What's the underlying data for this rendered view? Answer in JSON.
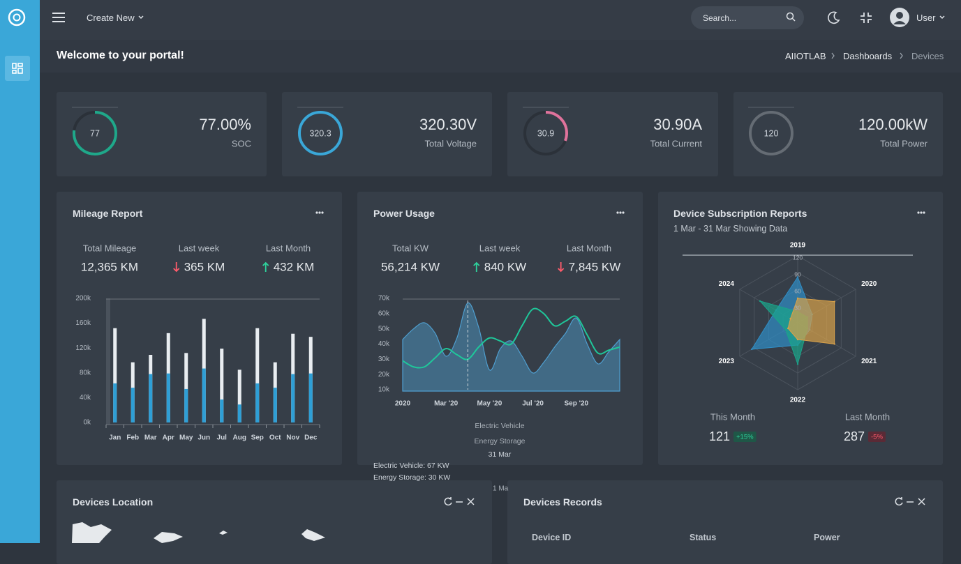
{
  "topbar": {
    "create": "Create New",
    "search": "Search...",
    "user": "User"
  },
  "page": {
    "title": "Welcome to your portal!",
    "breadcrumb": [
      "AIIOTLAB",
      "Dashboards",
      "Devices"
    ]
  },
  "stats": [
    {
      "gauge": 77,
      "value": "77.00%",
      "label": "SOC",
      "color": "#1fa88a"
    },
    {
      "gauge": 320.3,
      "value": "320.30V",
      "label": "Total Voltage",
      "color": "#3aa7d8"
    },
    {
      "gauge": 30.9,
      "value": "30.90A",
      "label": "Total Current",
      "color": "#e0739c"
    },
    {
      "gauge": 120,
      "value": "120.00kW",
      "label": "Total Power",
      "color": "#656c74"
    }
  ],
  "mileage": {
    "title": "Mileage Report",
    "summary": [
      {
        "label": "Total Mileage",
        "value": "12,365 KM"
      },
      {
        "label": "Last week",
        "value": "365 KM",
        "trend": "down"
      },
      {
        "label": "Last Month",
        "value": "432 KM",
        "trend": "up"
      }
    ],
    "chart": {
      "type": "bar",
      "categories": [
        "Jan",
        "Feb",
        "Mar",
        "Apr",
        "May",
        "Jun",
        "Jul",
        "Aug",
        "Sep",
        "Oct",
        "Nov",
        "Dec"
      ],
      "series": [
        {
          "color": "#e9edf1",
          "values": [
            152000,
            97000,
            109000,
            144000,
            112000,
            167000,
            119000,
            85000,
            152000,
            97000,
            143000,
            138000
          ]
        },
        {
          "color": "#2e9fd6",
          "values": [
            63000,
            56000,
            78000,
            79000,
            54000,
            87000,
            37000,
            29000,
            63000,
            56000,
            78000,
            79000
          ]
        }
      ],
      "ylim": [
        0,
        200000
      ],
      "yticks": [
        {
          "value": 0,
          "label": "0k"
        },
        {
          "value": 40000,
          "label": "40k"
        },
        {
          "value": 80000,
          "label": "80k"
        },
        {
          "value": 120000,
          "label": "120k"
        },
        {
          "value": 160000,
          "label": "160k"
        },
        {
          "value": 200000,
          "label": "200k"
        }
      ]
    }
  },
  "power": {
    "title": "Power Usage",
    "summary": [
      {
        "label": "Total KW",
        "value": "56,214 KW"
      },
      {
        "label": "Last week",
        "value": "840 KW",
        "trend": "up"
      },
      {
        "label": "Last Month",
        "value": "7,845 KW",
        "trend": "down"
      }
    ],
    "chart": {
      "type": "area",
      "categories": [
        "2020",
        null,
        null,
        null,
        "Mar '20",
        null,
        null,
        null,
        "May '20",
        null,
        null,
        null,
        "Jul '20",
        null,
        null,
        null,
        "Sep '20",
        null,
        null,
        null,
        null
      ],
      "series": [
        {
          "name": "Electric Vehicle",
          "kind": "area",
          "color": "#4f9fd0",
          "values": [
            43000,
            50000,
            54000,
            47000,
            32000,
            44000,
            67000,
            51000,
            23000,
            37000,
            42000,
            32000,
            21000,
            28000,
            38000,
            47000,
            57000,
            40000,
            27000,
            35000,
            43000
          ]
        },
        {
          "name": "Energy Storage",
          "kind": "line",
          "color": "#1fc79a",
          "values": [
            29000,
            25000,
            25000,
            31000,
            37000,
            33000,
            30000,
            38000,
            44000,
            42000,
            40000,
            52000,
            63000,
            60000,
            52000,
            55000,
            58000,
            46000,
            34000,
            36000,
            38000
          ]
        }
      ],
      "ylim": [
        10000,
        70000
      ],
      "yticks": [
        {
          "value": 10000,
          "label": "10k"
        },
        {
          "value": 20000,
          "label": "20k"
        },
        {
          "value": 30000,
          "label": "30k"
        },
        {
          "value": 40000,
          "label": "40k"
        },
        {
          "value": 50000,
          "label": "50k"
        },
        {
          "value": 60000,
          "label": "60k"
        },
        {
          "value": 70000,
          "label": "70k"
        }
      ],
      "tooltip": {
        "title": "31 Mar",
        "lines": [
          "Electric Vehicle: 67 KW",
          "Energy Storage: 30 KW"
        ],
        "cut_label": "1 Ma"
      }
    }
  },
  "subscriptions": {
    "title": "Device Subscription Reports",
    "subtitle": "1 Mar - 31 Mar Showing Data",
    "chart": {
      "type": "radar",
      "categories": [
        "2019",
        "2020",
        "2021",
        "2022",
        "2023",
        "2024"
      ],
      "series": [
        {
          "color": "#2f8fc7",
          "values": [
            82,
            30,
            25,
            40,
            95,
            45
          ]
        },
        {
          "color": "#1aa58a",
          "values": [
            20,
            20,
            20,
            74,
            25,
            78
          ]
        },
        {
          "color": "#d9a24a",
          "values": [
            44,
            76,
            76,
            30,
            20,
            15
          ]
        }
      ],
      "rlim": [
        0,
        120
      ],
      "rticks": [
        30,
        60,
        90,
        120
      ]
    },
    "totals": [
      {
        "label": "This Month",
        "value": 121,
        "change": "+15%",
        "trend": "up"
      },
      {
        "label": "Last Month",
        "value": 287,
        "change": "-5%",
        "trend": "down"
      }
    ]
  },
  "location": {
    "title": "Devices Location"
  },
  "records": {
    "title": "Devices Records",
    "columns": [
      "Device ID",
      "Status",
      "Power"
    ]
  }
}
